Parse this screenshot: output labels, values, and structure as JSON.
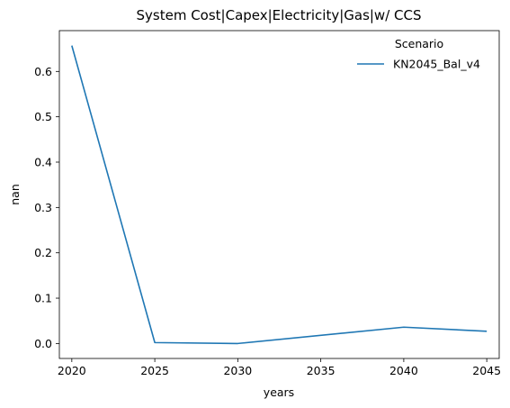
{
  "chart_data": {
    "type": "line",
    "title": "System Cost|Capex|Electricity|Gas|w/ CCS",
    "xlabel": "years",
    "ylabel": "nan",
    "x": [
      2020,
      2025,
      2030,
      2040,
      2045
    ],
    "xticks": [
      "2020",
      "2025",
      "2030",
      "2035",
      "2040",
      "2045"
    ],
    "yticks": [
      "0.0",
      "0.1",
      "0.2",
      "0.3",
      "0.4",
      "0.5",
      "0.6"
    ],
    "xlim": [
      2019.25,
      2045.75
    ],
    "ylim": [
      -0.033,
      0.69
    ],
    "series": [
      {
        "name": "KN2045_Bal_v4",
        "color": "#1f77b4",
        "values": [
          0.657,
          0.002,
          0.0,
          0.036,
          0.027
        ]
      }
    ],
    "legend": {
      "title": "Scenario",
      "placement": "top-right"
    },
    "grid": false
  }
}
